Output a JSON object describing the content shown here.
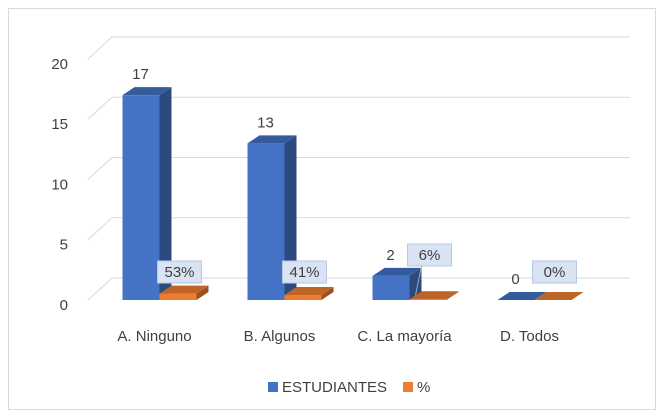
{
  "chart_data": {
    "type": "bar3d",
    "categories": [
      "A. Ninguno",
      "B. Algunos",
      "C. La mayoría",
      "D. Todos"
    ],
    "series": [
      {
        "name": "ESTUDIANTES",
        "color": "#4472c4",
        "values": [
          17,
          13,
          2,
          0
        ]
      },
      {
        "name": "%",
        "color": "#ed7d31",
        "values": [
          0.53,
          0.41,
          0.06,
          0
        ],
        "value_labels": [
          "53%",
          "41%",
          "6%",
          "0%"
        ]
      }
    ],
    "ylim": [
      0,
      20
    ],
    "yticks": [
      0,
      5,
      10,
      15,
      20
    ],
    "grid": true,
    "legend": "bottom"
  }
}
